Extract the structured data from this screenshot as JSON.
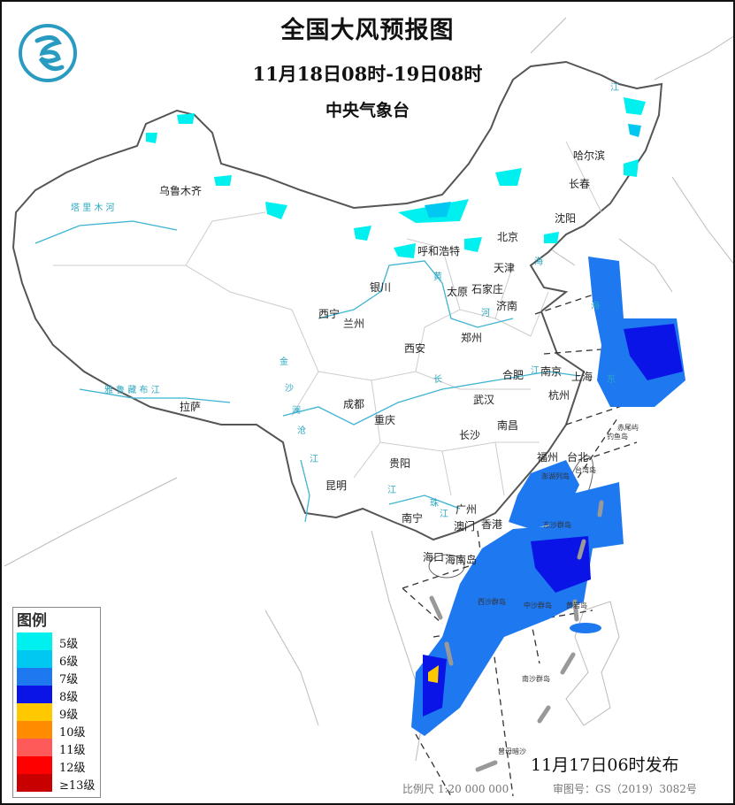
{
  "header": {
    "title": "全国大风预报图",
    "period": "11月18日08时-19日08时",
    "issuer": "中央气象台"
  },
  "logo": {
    "icon": "cma-logo-icon",
    "color": "#2a9bc0"
  },
  "legend": {
    "title": "图例",
    "items": [
      {
        "label": "5级",
        "color": "#00f0f0"
      },
      {
        "label": "6级",
        "color": "#00c8f0"
      },
      {
        "label": "7级",
        "color": "#1e78f0"
      },
      {
        "label": "8级",
        "color": "#0a14e6"
      },
      {
        "label": "9级",
        "color": "#ffc800"
      },
      {
        "label": "10级",
        "color": "#ff8c00"
      },
      {
        "label": "11级",
        "color": "#ff5a5a"
      },
      {
        "label": "12级",
        "color": "#ff0000"
      },
      {
        "label": "≥13级",
        "color": "#c80000"
      }
    ]
  },
  "cities": [
    "乌鲁木齐",
    "哈尔滨",
    "长春",
    "沈阳",
    "北京",
    "天津",
    "呼和浩特",
    "银川",
    "太原",
    "石家庄",
    "济南",
    "西宁",
    "兰州",
    "西安",
    "郑州",
    "合肥",
    "南京",
    "上海",
    "杭州",
    "武汉",
    "成都",
    "重庆",
    "拉萨",
    "长沙",
    "南昌",
    "贵阳",
    "福州",
    "台北",
    "昆明",
    "南宁",
    "广州",
    "香港",
    "澳门",
    "海口",
    "海南岛"
  ],
  "islands": [
    "赤尾屿",
    "钓鱼岛",
    "台湾岛",
    "澎湖列岛",
    "东沙群岛",
    "西沙群岛",
    "中沙群岛",
    "黄岩岛",
    "南沙群岛",
    "曾母暗沙"
  ],
  "water_labels": [
    "塔 里 木 河",
    "雅 鲁 藏 布 江",
    "黄",
    "河",
    "长",
    "江",
    "金",
    "沙",
    "江",
    "澜",
    "沧",
    "江",
    "珠",
    "江",
    "海",
    "海",
    "东",
    "江"
  ],
  "footer": {
    "issued": "11月17日06时发布",
    "scale": "比例尺 1:20 000 000",
    "review_number": "审图号：GS（2019）3082号"
  }
}
